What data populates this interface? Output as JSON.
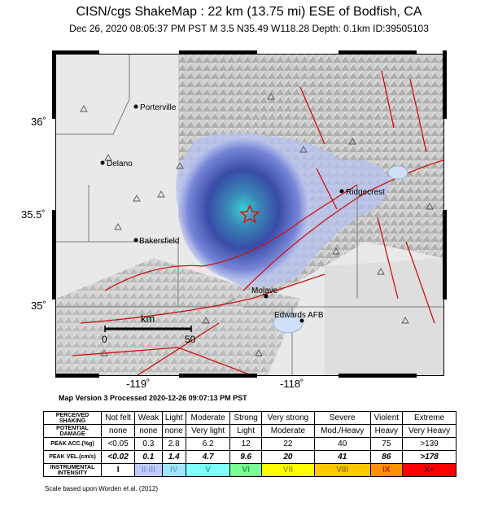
{
  "header": {
    "title": "CISN/cgs ShakeMap : 22 km (13.75 mi) ESE of Bodfish, CA",
    "subtitle": "Dec 26, 2020 08:05:37 PM PST   M 3.5   N35.49 W118.28   Depth: 0.1km   ID:39505103"
  },
  "map": {
    "lat_labels": [
      "36˚",
      "35.5˚",
      "35˚"
    ],
    "lon_labels": [
      "-119˚",
      "-118˚"
    ],
    "cities": [
      {
        "name": "Porterville"
      },
      {
        "name": "Delano"
      },
      {
        "name": "Bakersfield"
      },
      {
        "name": "Ridgecrest"
      },
      {
        "name": "Mojave"
      },
      {
        "name": "Edwards AFB"
      }
    ],
    "scale_bar": {
      "unit": "km",
      "start": "0",
      "end": "50"
    },
    "epicenter_icon": "star-icon"
  },
  "version_line": "Map Version 3 Processed 2020-12-26 09:07:13 PM PST",
  "legend": {
    "rows": [
      {
        "header": [
          "PERCEIVED",
          "SHAKING"
        ],
        "cells": [
          "Not felt",
          "Weak",
          "Light",
          "Moderate",
          "Strong",
          "Very strong",
          "Severe",
          "Violent",
          "Extreme"
        ]
      },
      {
        "header": [
          "POTENTIAL",
          "DAMAGE"
        ],
        "cells": [
          "none",
          "none",
          "none",
          "Very light",
          "Light",
          "Moderate",
          "Mod./Heavy",
          "Heavy",
          "Very Heavy"
        ]
      },
      {
        "header": [
          "PEAK ACC.(%g)"
        ],
        "cells": [
          "<0.05",
          "0.3",
          "2.8",
          "6.2",
          "12",
          "22",
          "40",
          "75",
          ">139"
        ]
      },
      {
        "header": [
          "PEAK VEL.(cm/s)"
        ],
        "cells": [
          "<0.02",
          "0.1",
          "1.4",
          "4.7",
          "9.6",
          "20",
          "41",
          "86",
          ">178"
        ]
      },
      {
        "header": [
          "INSTRUMENTAL",
          "INTENSITY"
        ],
        "cells": [
          "I",
          "II-III",
          "IV",
          "V",
          "VI",
          "VII",
          "VIII",
          "IX",
          "X+"
        ]
      }
    ],
    "intensity_colors": [
      "#ffffff",
      "#bfccff",
      "#a0e6ff",
      "#80ffff",
      "#7aff93",
      "#ffff00",
      "#ffc800",
      "#ff9100",
      "#ff0000"
    ],
    "intensity_text_colors": [
      "#000000",
      "#8a9ad6",
      "#6aaed6",
      "#39a8a8",
      "#2f9b48",
      "#a3a300",
      "#9b7a00",
      "#c21f1f",
      "#5c0000"
    ]
  },
  "scale_note": "Scale based upon Worden et al. (2012)"
}
